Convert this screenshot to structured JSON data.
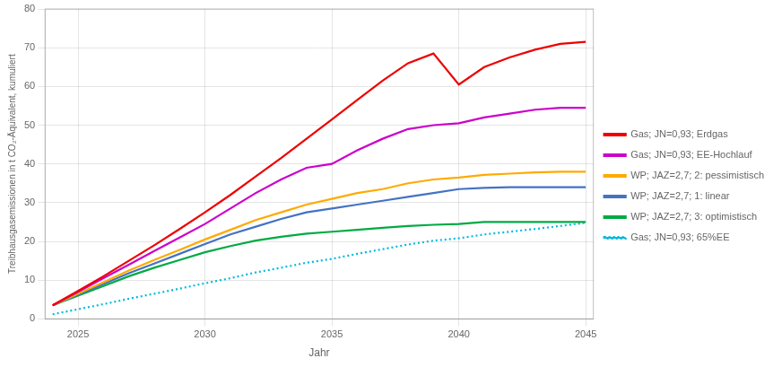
{
  "chart_data": {
    "type": "line",
    "xlabel": "Jahr",
    "ylabel": "Treibhausgasemissionen in t CO₂-Äquivalent, kumuliert",
    "x": [
      2024,
      2025,
      2026,
      2027,
      2028,
      2029,
      2030,
      2031,
      2032,
      2033,
      2034,
      2035,
      2036,
      2037,
      2038,
      2039,
      2040,
      2041,
      2042,
      2043,
      2044,
      2045
    ],
    "series": [
      {
        "name": "Gas; JN=0,93; Erdgas",
        "color": "#ee0000",
        "line_style": "solid",
        "values": [
          3.5,
          7.2,
          11.0,
          15.0,
          19.0,
          23.2,
          27.5,
          32.0,
          36.8,
          41.5,
          46.5,
          51.5,
          56.5,
          61.5,
          66.0,
          68.5,
          60.5,
          65.0,
          67.5,
          69.5,
          71.0,
          71.5
        ]
      },
      {
        "name": "Gas; JN=0,93; EE-Hochlauf",
        "color": "#cc00cc",
        "line_style": "solid",
        "values": [
          3.5,
          7.0,
          10.5,
          14.0,
          17.5,
          21.0,
          24.5,
          28.5,
          32.5,
          36.0,
          39.0,
          40.0,
          43.5,
          46.5,
          49.0,
          50.0,
          50.5,
          52.0,
          53.0,
          54.0,
          54.5,
          54.5
        ]
      },
      {
        "name": "WP; JAZ=2,7; 2: pessimistisch",
        "color": "#ffaa00",
        "line_style": "solid",
        "values": [
          3.5,
          6.5,
          9.5,
          12.5,
          15.2,
          17.8,
          20.5,
          23.0,
          25.5,
          27.5,
          29.5,
          31.0,
          32.5,
          33.5,
          35.0,
          36.0,
          36.5,
          37.2,
          37.5,
          37.8,
          38.0,
          38.0
        ]
      },
      {
        "name": "WP; JAZ=2,7; 1: linear",
        "color": "#4472c4",
        "line_style": "solid",
        "values": [
          3.5,
          6.3,
          9.0,
          11.8,
          14.3,
          16.8,
          19.3,
          21.8,
          23.8,
          25.8,
          27.5,
          28.5,
          29.5,
          30.5,
          31.5,
          32.5,
          33.5,
          33.8,
          34.0,
          34.0,
          34.0,
          34.0
        ]
      },
      {
        "name": "WP; JAZ=2,7; 3: optimistisch",
        "color": "#00aa44",
        "line_style": "solid",
        "values": [
          3.5,
          6.0,
          8.5,
          11.0,
          13.2,
          15.2,
          17.2,
          18.8,
          20.2,
          21.2,
          22.0,
          22.5,
          23.0,
          23.5,
          24.0,
          24.3,
          24.5,
          25.0,
          25.0,
          25.0,
          25.0,
          25.0
        ]
      },
      {
        "name": "Gas; JN=0,93; 65%EE",
        "color": "#00bbdd",
        "line_style": "dotted",
        "values": [
          1.2,
          2.5,
          3.8,
          5.2,
          6.5,
          7.8,
          9.2,
          10.5,
          12.0,
          13.2,
          14.5,
          15.5,
          16.8,
          18.0,
          19.2,
          20.2,
          20.8,
          21.8,
          22.5,
          23.2,
          24.0,
          24.8
        ]
      }
    ],
    "xlim": [
      2023.7,
      2045.3
    ],
    "ylim": [
      0,
      80
    ],
    "xticks": [
      2025,
      2030,
      2035,
      2040,
      2045
    ],
    "yticks": [
      0,
      10,
      20,
      30,
      40,
      50,
      60,
      70,
      80
    ],
    "grid": true,
    "legend": "right"
  }
}
